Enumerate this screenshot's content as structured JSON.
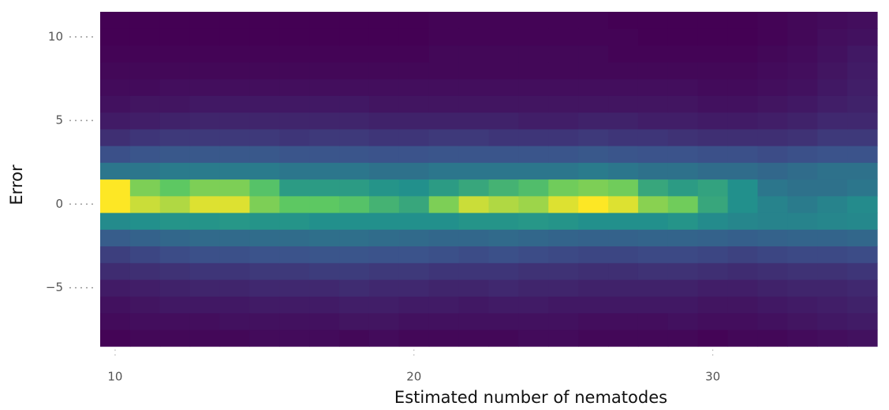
{
  "chart_data": {
    "type": "heatmap",
    "x_label": "Estimated number of nematodes",
    "y_label": "Error",
    "x": [
      10,
      11,
      12,
      13,
      14,
      15,
      16,
      17,
      18,
      19,
      20,
      21,
      22,
      23,
      24,
      25,
      26,
      27,
      28,
      29,
      30,
      31,
      32,
      33,
      34,
      35
    ],
    "y": [
      -8,
      -7,
      -6,
      -5,
      -4,
      -3,
      -2,
      -1,
      0,
      1,
      2,
      3,
      4,
      5,
      6,
      7,
      8,
      9,
      10,
      11
    ],
    "z": [
      [
        2,
        3,
        3,
        3,
        3,
        4,
        4,
        4,
        3,
        4,
        3,
        3,
        3,
        3,
        4,
        4,
        3,
        3,
        3,
        3,
        2,
        3,
        3,
        4,
        5,
        6
      ],
      [
        4,
        5,
        5,
        5,
        6,
        6,
        6,
        6,
        7,
        7,
        6,
        6,
        6,
        6,
        6,
        6,
        5,
        5,
        5,
        6,
        5,
        5,
        6,
        7,
        8,
        9
      ],
      [
        6,
        7,
        8,
        8,
        8,
        9,
        9,
        9,
        10,
        10,
        9,
        9,
        8,
        9,
        9,
        8,
        8,
        8,
        8,
        8,
        7,
        7,
        8,
        9,
        10,
        11
      ],
      [
        9,
        10,
        11,
        12,
        12,
        13,
        13,
        13,
        14,
        13,
        13,
        12,
        12,
        13,
        12,
        12,
        11,
        11,
        11,
        11,
        10,
        10,
        11,
        12,
        12,
        13
      ],
      [
        14,
        15,
        16,
        17,
        17,
        18,
        18,
        19,
        19,
        18,
        18,
        17,
        17,
        17,
        16,
        16,
        15,
        15,
        16,
        16,
        15,
        14,
        15,
        16,
        16,
        17
      ],
      [
        20,
        22,
        24,
        25,
        25,
        26,
        26,
        27,
        27,
        26,
        26,
        25,
        24,
        25,
        24,
        23,
        22,
        22,
        23,
        23,
        22,
        21,
        22,
        23,
        23,
        24
      ],
      [
        30,
        32,
        34,
        35,
        35,
        36,
        36,
        37,
        37,
        36,
        35,
        34,
        34,
        35,
        34,
        33,
        32,
        32,
        33,
        33,
        32,
        31,
        32,
        33,
        33,
        34
      ],
      [
        48,
        50,
        52,
        52,
        53,
        52,
        52,
        50,
        50,
        50,
        50,
        50,
        52,
        52,
        53,
        52,
        50,
        50,
        50,
        52,
        48,
        46,
        45,
        45,
        46,
        47
      ],
      [
        100,
        92,
        88,
        95,
        95,
        80,
        75,
        75,
        72,
        65,
        60,
        80,
        92,
        88,
        85,
        95,
        100,
        95,
        82,
        78,
        60,
        50,
        45,
        42,
        45,
        48
      ],
      [
        100,
        80,
        75,
        80,
        80,
        72,
        55,
        55,
        55,
        52,
        50,
        55,
        60,
        65,
        70,
        78,
        80,
        78,
        60,
        55,
        58,
        50,
        40,
        38,
        38,
        40
      ],
      [
        40,
        40,
        42,
        42,
        42,
        42,
        40,
        40,
        40,
        38,
        38,
        40,
        40,
        40,
        40,
        40,
        42,
        40,
        38,
        38,
        36,
        36,
        34,
        36,
        38,
        38
      ],
      [
        25,
        27,
        28,
        28,
        28,
        28,
        27,
        27,
        27,
        26,
        26,
        27,
        27,
        27,
        27,
        27,
        28,
        27,
        26,
        26,
        25,
        25,
        24,
        25,
        26,
        26
      ],
      [
        15,
        17,
        18,
        18,
        18,
        18,
        17,
        18,
        18,
        17,
        17,
        18,
        18,
        17,
        17,
        17,
        18,
        17,
        17,
        16,
        15,
        15,
        15,
        16,
        18,
        18
      ],
      [
        9,
        10,
        11,
        12,
        12,
        12,
        12,
        12,
        12,
        11,
        11,
        11,
        11,
        11,
        10,
        10,
        11,
        11,
        10,
        10,
        9,
        9,
        10,
        11,
        13,
        13
      ],
      [
        6,
        7,
        7,
        8,
        8,
        8,
        8,
        8,
        8,
        7,
        7,
        7,
        7,
        7,
        7,
        7,
        7,
        7,
        7,
        7,
        6,
        6,
        7,
        8,
        10,
        11
      ],
      [
        4,
        4,
        5,
        5,
        5,
        5,
        5,
        5,
        5,
        5,
        5,
        5,
        5,
        5,
        5,
        5,
        5,
        5,
        5,
        5,
        4,
        4,
        5,
        6,
        8,
        10
      ],
      [
        3,
        3,
        3,
        3,
        3,
        3,
        3,
        3,
        3,
        3,
        3,
        3,
        3,
        3,
        3,
        3,
        3,
        3,
        3,
        3,
        3,
        3,
        4,
        5,
        7,
        9
      ],
      [
        2,
        2,
        2,
        2,
        2,
        2,
        2,
        2,
        2,
        2,
        2,
        3,
        3,
        3,
        3,
        3,
        3,
        2,
        2,
        2,
        2,
        2,
        3,
        4,
        6,
        8
      ],
      [
        1,
        1,
        1,
        1,
        1,
        1,
        1,
        1,
        1,
        1,
        1,
        2,
        2,
        2,
        2,
        2,
        2,
        2,
        1,
        1,
        1,
        1,
        2,
        3,
        5,
        6
      ],
      [
        1,
        1,
        1,
        1,
        1,
        1,
        1,
        1,
        1,
        1,
        1,
        2,
        2,
        2,
        2,
        2,
        2,
        1,
        1,
        1,
        1,
        1,
        2,
        3,
        4,
        5
      ]
    ],
    "xlim": [
      9.5,
      35.5
    ],
    "ylim": [
      -8.5,
      11.5
    ],
    "xticks": [
      10,
      20,
      30
    ],
    "yticks": [
      {
        "value": -5,
        "label": "−5"
      },
      0,
      5,
      10
    ],
    "colormap": "viridis"
  }
}
